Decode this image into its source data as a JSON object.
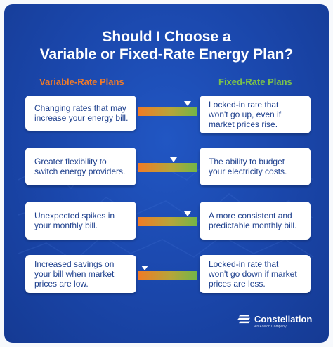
{
  "title": {
    "line1": "Should I Choose a",
    "line2": "Variable or Fixed-Rate Energy Plan?"
  },
  "columns": {
    "left": "Variable-Rate Plans",
    "right": "Fixed-Rate Plans"
  },
  "rows": [
    {
      "variable": "Changing rates that may\nincrease your energy bill.",
      "fixed": "Locked-in rate that\nwon't go up, even if\nmarket prices rise.",
      "preference": 0.83
    },
    {
      "variable": "Greater flexibility to\nswitch energy providers.",
      "fixed": "The ability to budget\nyour electricity costs.",
      "preference": 0.6
    },
    {
      "variable": "Unexpected spikes in\nyour monthly bill.",
      "fixed": "A more consistent and\npredictable monthly bill.",
      "preference": 0.83
    },
    {
      "variable": "Increased savings on\nyour bill when market\nprices are low.",
      "fixed": "Locked-in rate that\nwon't go down if market\nprices are less.",
      "preference": 0.12
    }
  ],
  "colors": {
    "background": "#1a46aa",
    "variable_accent": "#f07a2a",
    "fixed_accent": "#7cc24a",
    "box_text": "#1c3e8c"
  },
  "logo": {
    "name": "Constellation",
    "tagline": "An Exelon Company",
    "icon": "constellation-stripes-icon"
  }
}
